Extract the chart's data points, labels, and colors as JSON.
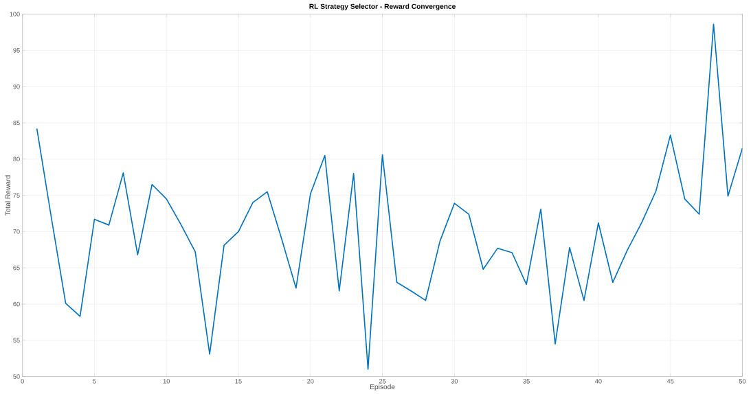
{
  "chart_data": {
    "type": "line",
    "title": "RL Strategy Selector - Reward Convergence",
    "xlabel": "Episode",
    "ylabel": "Total Reward",
    "x": [
      1,
      2,
      3,
      4,
      5,
      6,
      7,
      8,
      9,
      10,
      11,
      12,
      13,
      14,
      15,
      16,
      17,
      18,
      19,
      20,
      21,
      22,
      23,
      24,
      25,
      26,
      27,
      28,
      29,
      30,
      31,
      32,
      33,
      34,
      35,
      36,
      37,
      38,
      39,
      40,
      41,
      42,
      43,
      44,
      45,
      46,
      47,
      48,
      49,
      50
    ],
    "series": [
      {
        "color": "#0072bd",
        "values": [
          84.2,
          72,
          60.1,
          58.3,
          71.7,
          70.9,
          78.1,
          66.8,
          76.5,
          74.5,
          71,
          67.2,
          53.1,
          68.1,
          70,
          74,
          75.5,
          69,
          62.2,
          75.2,
          80.5,
          61.8,
          78,
          51,
          80.6,
          63,
          61.8,
          60.5,
          68.7,
          73.9,
          72.4,
          64.8,
          67.7,
          67.1,
          62.7,
          73.1,
          54.5,
          67.8,
          60.5,
          71.2,
          63,
          67.4,
          71.2,
          75.6,
          83.3,
          74.5,
          72.4,
          98.6,
          74.9,
          81.5
        ]
      }
    ],
    "xlim": [
      0,
      50
    ],
    "ylim": [
      50,
      100
    ],
    "xticks": [
      0,
      5,
      10,
      15,
      20,
      25,
      30,
      35,
      40,
      45,
      50
    ],
    "yticks": [
      50,
      55,
      60,
      65,
      70,
      75,
      80,
      85,
      90,
      95,
      100
    ],
    "grid": true,
    "marker": "none",
    "line_style": "solid"
  }
}
